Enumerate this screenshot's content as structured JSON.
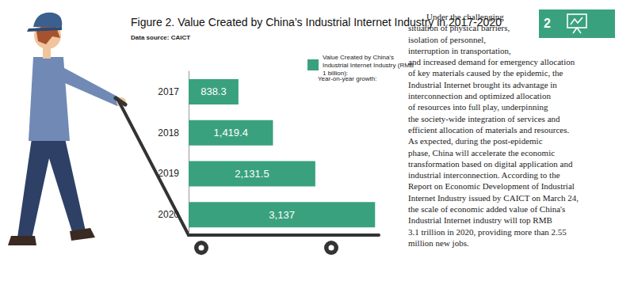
{
  "chart_data": {
    "type": "bar",
    "orientation": "horizontal",
    "title": "Figure 2. Value Created by China’s Industrial Internet Industry in 2017-2020",
    "subtitle": "Data source: CAICT",
    "categories": [
      "2017",
      "2018",
      "2019",
      "2020"
    ],
    "series": [
      {
        "name": "Value Created by China’s Industrial Internet Industry (RMB 1 billion):",
        "color": "#3aa17e",
        "values": [
          838.3,
          1419.4,
          2131.5,
          3137
        ],
        "value_labels": [
          "838.3",
          "1,419.4",
          "2,131.5",
          "3,137"
        ]
      }
    ],
    "annotations": [
      "Year-on-year growth:"
    ],
    "xlim": [
      0,
      3200
    ],
    "data_labels": true,
    "tick_labels": "y",
    "grid": false,
    "legend": "top"
  },
  "sidebar": {
    "badge": "2",
    "paragraph": [
      "Under the challenging",
      "situation of physical barriers,",
      "isolation of personnel,",
      "interruption in transportation,",
      "and increased demand for emergency allocation",
      "of key materials caused by the epidemic, the",
      "Industrial Internet brought its advantage in",
      "interconnection and optimized allocation",
      "of resources into full play, underpinning",
      "the society-wide integration of services and",
      "efficient allocation of materials and resources.",
      "As expected, during the post-epidemic",
      "phase, China will accelerate the economic",
      "transformation based on digital application and",
      "industrial interconnection. According to the",
      "Report on Economic Development of Industrial",
      "Internet Industry issued by CAICT on March 24,",
      "the scale of economic added value of China's",
      "Industrial Internet industry will top RMB",
      "3.1 trillion in 2020, providing more than 2.55",
      "million new jobs."
    ]
  }
}
